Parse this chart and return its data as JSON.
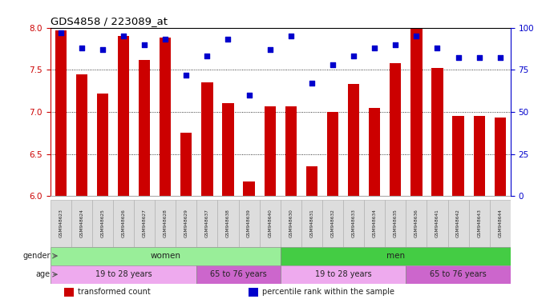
{
  "title": "GDS4858 / 223089_at",
  "samples": [
    "GSM948623",
    "GSM948624",
    "GSM948625",
    "GSM948626",
    "GSM948627",
    "GSM948628",
    "GSM948629",
    "GSM948637",
    "GSM948638",
    "GSM948639",
    "GSM948640",
    "GSM948630",
    "GSM948631",
    "GSM948632",
    "GSM948633",
    "GSM948634",
    "GSM948635",
    "GSM948636",
    "GSM948641",
    "GSM948642",
    "GSM948643",
    "GSM948644"
  ],
  "bar_values": [
    7.97,
    7.45,
    7.22,
    7.9,
    7.62,
    7.88,
    6.75,
    7.35,
    7.1,
    6.17,
    7.07,
    7.07,
    6.35,
    7.0,
    7.33,
    7.05,
    7.58,
    8.0,
    7.52,
    6.95,
    6.95,
    6.93
  ],
  "dot_values": [
    97,
    88,
    87,
    95,
    90,
    93,
    72,
    83,
    93,
    60,
    87,
    95,
    67,
    78,
    83,
    88,
    90,
    95,
    88,
    82,
    82,
    82
  ],
  "ylim_left": [
    6.0,
    8.0
  ],
  "ylim_right": [
    0,
    100
  ],
  "yticks_left": [
    6.0,
    6.5,
    7.0,
    7.5,
    8.0
  ],
  "yticks_right": [
    0,
    25,
    50,
    75,
    100
  ],
  "bar_color": "#CC0000",
  "dot_color": "#0000CC",
  "title_color": "#000000",
  "left_axis_color": "#CC0000",
  "right_axis_color": "#0000CC",
  "grid_color": "#000000",
  "background_color": "#FFFFFF",
  "gender_groups": [
    {
      "label": "women",
      "start": 0,
      "end": 11,
      "color": "#99EE99"
    },
    {
      "label": "men",
      "start": 11,
      "end": 22,
      "color": "#44CC44"
    }
  ],
  "age_groups": [
    {
      "label": "19 to 28 years",
      "start": 0,
      "end": 7,
      "color": "#EEAAEE"
    },
    {
      "label": "65 to 76 years",
      "start": 7,
      "end": 11,
      "color": "#CC66CC"
    },
    {
      "label": "19 to 28 years",
      "start": 11,
      "end": 17,
      "color": "#EEAAEE"
    },
    {
      "label": "65 to 76 years",
      "start": 17,
      "end": 22,
      "color": "#CC66CC"
    }
  ],
  "legend_items": [
    {
      "label": "transformed count",
      "color": "#CC0000"
    },
    {
      "label": "percentile rank within the sample",
      "color": "#0000CC"
    }
  ]
}
